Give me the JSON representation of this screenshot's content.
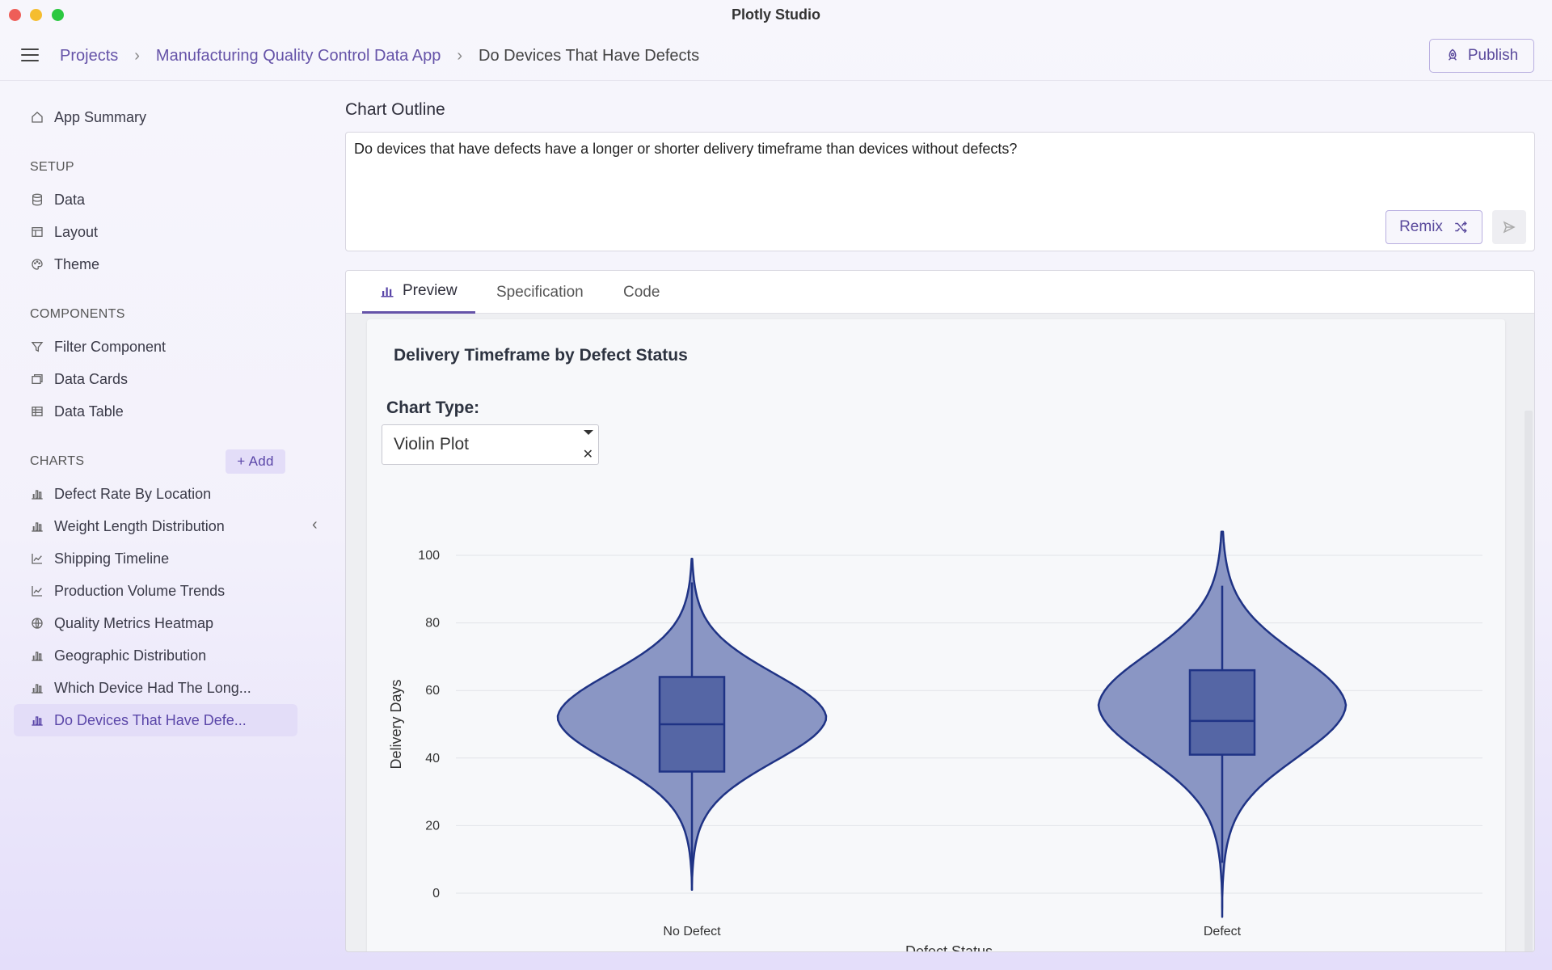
{
  "window": {
    "title": "Plotly Studio"
  },
  "breadcrumb": {
    "items": [
      "Projects",
      "Manufacturing Quality Control Data App"
    ],
    "current": "Do Devices That Have Defects"
  },
  "header": {
    "publish_label": "Publish"
  },
  "sidebar": {
    "app_summary": "App Summary",
    "setup_label": "SETUP",
    "setup_items": [
      {
        "label": "Data",
        "icon": "database-icon"
      },
      {
        "label": "Layout",
        "icon": "layout-icon"
      },
      {
        "label": "Theme",
        "icon": "palette-icon"
      }
    ],
    "components_label": "COMPONENTS",
    "component_items": [
      {
        "label": "Filter Component",
        "icon": "filter-icon"
      },
      {
        "label": "Data Cards",
        "icon": "cards-icon"
      },
      {
        "label": "Data Table",
        "icon": "table-icon"
      }
    ],
    "charts_label": "CHARTS",
    "add_label": "+ Add",
    "chart_items": [
      {
        "label": "Defect Rate By Location",
        "icon": "bar-chart-icon"
      },
      {
        "label": "Weight Length Distribution",
        "icon": "bar-chart-icon"
      },
      {
        "label": "Shipping Timeline",
        "icon": "line-chart-icon"
      },
      {
        "label": "Production Volume Trends",
        "icon": "line-chart-icon"
      },
      {
        "label": "Quality Metrics Heatmap",
        "icon": "globe-icon"
      },
      {
        "label": "Geographic Distribution",
        "icon": "bar-chart-icon"
      },
      {
        "label": "Which Device Had The Long...",
        "icon": "bar-chart-icon"
      },
      {
        "label": "Do Devices That Have Defe...",
        "icon": "bar-chart-icon",
        "active": true
      }
    ]
  },
  "outline": {
    "label": "Chart Outline",
    "text": "Do devices that have defects have a longer or shorter delivery timeframe than devices without defects?",
    "remix_label": "Remix"
  },
  "tabs": {
    "preview": "Preview",
    "specification": "Specification",
    "code": "Code"
  },
  "chart_panel": {
    "title": "Delivery Timeframe by Defect Status",
    "type_label": "Chart Type:",
    "type_value": "Violin Plot"
  },
  "colors": {
    "accent": "#6553a8",
    "violin_fill": "#8a96c4",
    "violin_line": "#1f3385",
    "box_fill": "#5566a5"
  },
  "chart_data": {
    "type": "violin",
    "title": "Delivery Timeframe by Defect Status",
    "ylabel": "Delivery Days",
    "xlabel": "Defect Status",
    "ylim": [
      0,
      100
    ],
    "yticks": [
      0,
      20,
      40,
      60,
      80,
      100
    ],
    "categories": [
      "No Defect",
      "Defect"
    ],
    "grid": true,
    "series": [
      {
        "category": "No Defect",
        "min": 8,
        "q1": 36,
        "median": 50,
        "q3": 64,
        "max": 92,
        "kde_low": 1,
        "kde_high": 99
      },
      {
        "category": "Defect",
        "min": 9,
        "q1": 41,
        "median": 51,
        "q3": 66,
        "max": 91,
        "kde_low": -7,
        "kde_high": 107
      }
    ]
  }
}
